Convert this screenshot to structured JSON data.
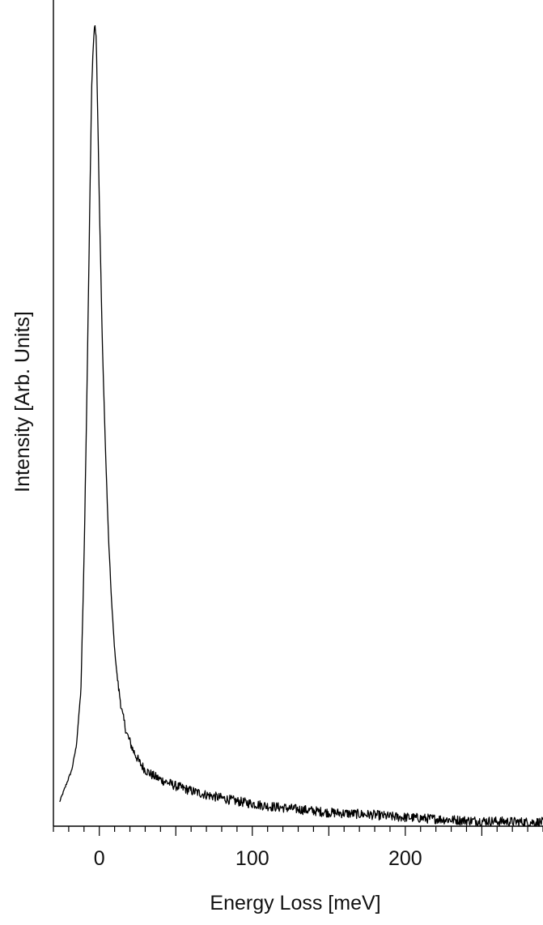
{
  "chart_data": {
    "type": "line",
    "title": "",
    "xlabel": "Energy Loss [meV]",
    "ylabel": "Intensity [Arb. Units]",
    "xlim": [
      -30,
      290
    ],
    "ylim": [
      0,
      1.0
    ],
    "xticks": [
      0,
      100,
      200
    ],
    "x_minor_step": 10,
    "y_tick_labels": false,
    "grid": false,
    "legend": "none",
    "line_color": "#000000",
    "series": [
      {
        "x": [
          -26,
          -22,
          -18,
          -15,
          -12,
          -10,
          -8,
          -6,
          -5,
          -4,
          -3,
          -2,
          -1,
          0,
          2,
          4,
          6,
          8,
          10,
          12,
          15,
          18,
          22,
          26,
          30,
          35,
          40,
          50,
          60,
          70,
          80,
          90,
          100,
          110,
          120,
          130,
          140,
          150,
          160,
          170,
          180,
          190,
          200,
          210,
          220,
          230,
          240,
          250,
          260,
          270,
          280,
          290
        ],
        "values": [
          0.03,
          0.05,
          0.07,
          0.1,
          0.17,
          0.33,
          0.55,
          0.8,
          0.92,
          0.97,
          1.0,
          0.98,
          0.88,
          0.78,
          0.6,
          0.47,
          0.36,
          0.28,
          0.22,
          0.18,
          0.14,
          0.115,
          0.095,
          0.08,
          0.07,
          0.063,
          0.058,
          0.05,
          0.044,
          0.039,
          0.035,
          0.031,
          0.028,
          0.025,
          0.023,
          0.021,
          0.019,
          0.017,
          0.016,
          0.015,
          0.014,
          0.012,
          0.011,
          0.01,
          0.009,
          0.008,
          0.007,
          0.0065,
          0.006,
          0.0055,
          0.005,
          0.005
        ]
      }
    ]
  }
}
